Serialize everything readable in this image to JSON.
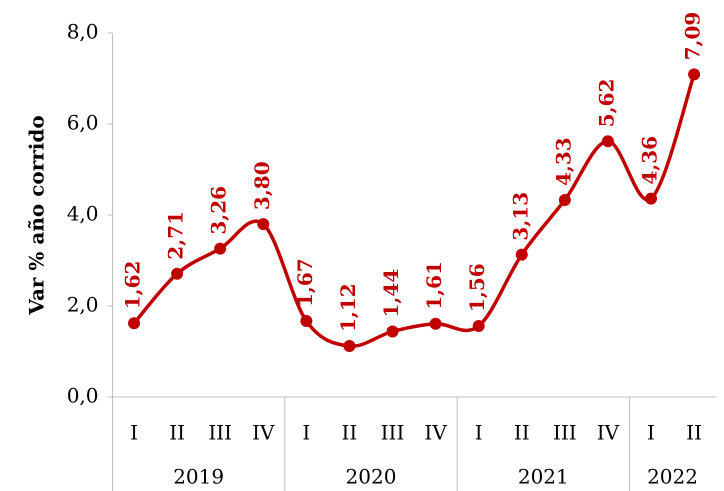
{
  "chart_data": {
    "type": "line",
    "y_label": "Var % año corrido",
    "categories": [
      "I",
      "II",
      "III",
      "IV",
      "I",
      "II",
      "III",
      "IV",
      "I",
      "II",
      "III",
      "IV",
      "I",
      "II"
    ],
    "year_groups": [
      "2019",
      "2020",
      "2021",
      "2022"
    ],
    "series": [
      {
        "name": "Var % año corrido",
        "color": "#c00000",
        "values": [
          1.62,
          2.71,
          3.26,
          3.8,
          1.67,
          1.12,
          1.44,
          1.61,
          1.56,
          3.13,
          4.33,
          5.62,
          4.36,
          7.09
        ],
        "value_labels": [
          "1,62",
          "2,71",
          "3,26",
          "3,80",
          "1,67",
          "1,12",
          "1,44",
          "1,61",
          "1,56",
          "3,13",
          "4,33",
          "5,62",
          "4,36",
          "7,09"
        ]
      }
    ],
    "ylim": [
      0,
      8
    ],
    "yticks": [
      {
        "value": 0,
        "label": "0,0"
      },
      {
        "value": 2,
        "label": "2,0"
      },
      {
        "value": 4,
        "label": "4,0"
      },
      {
        "value": 6,
        "label": "6,0"
      },
      {
        "value": 8,
        "label": "8,0"
      }
    ],
    "smooth": true
  }
}
